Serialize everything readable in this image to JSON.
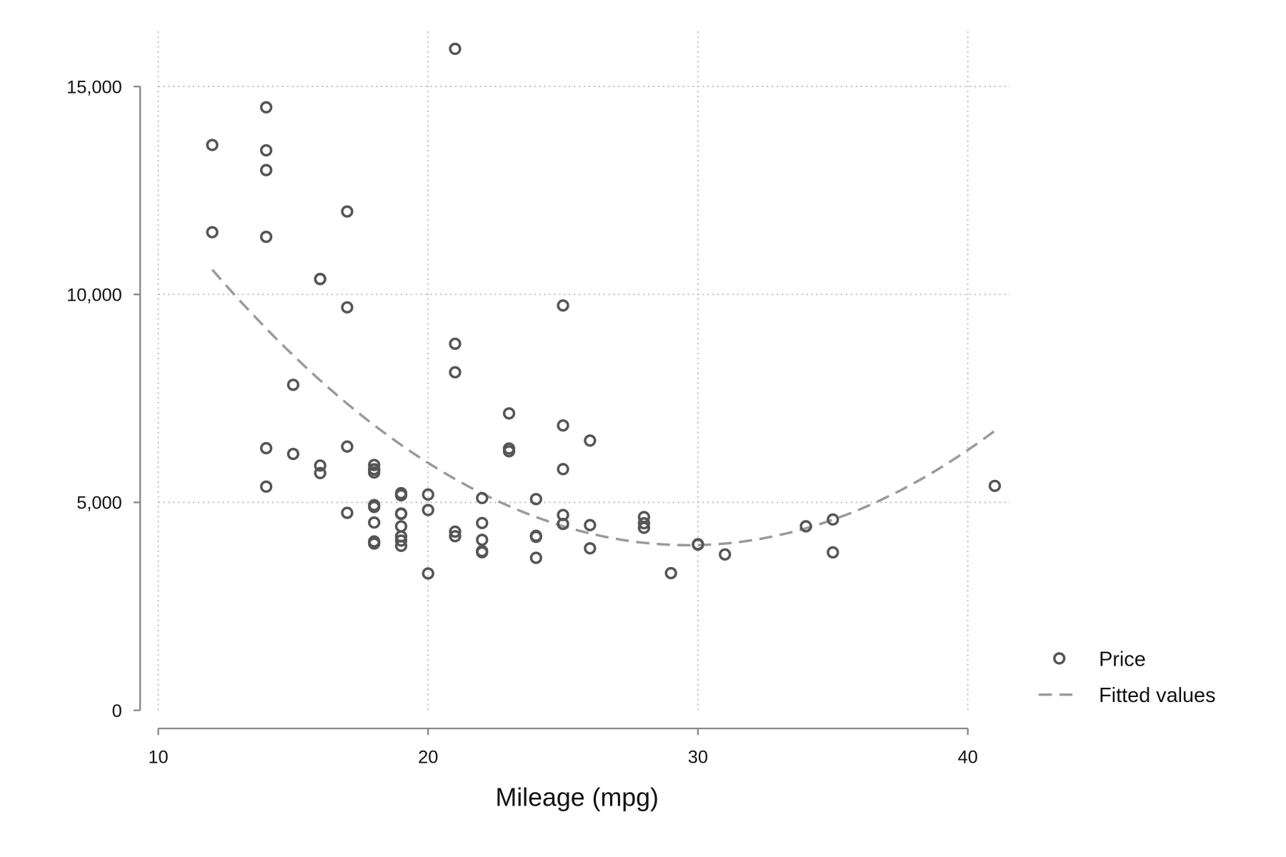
{
  "chart_data": {
    "type": "scatter",
    "title": "",
    "xlabel": "Mileage (mpg)",
    "ylabel": "",
    "xlim": [
      10,
      41
    ],
    "ylim": [
      0,
      16000
    ],
    "xticks": [
      10,
      20,
      30,
      40
    ],
    "xtick_labels": [
      "10",
      "20",
      "30",
      "40"
    ],
    "yticks": [
      0,
      5000,
      10000,
      15000
    ],
    "ytick_labels": [
      "0",
      "5,000",
      "10,000",
      "15,000"
    ],
    "grid": true,
    "legend": {
      "placement": "right",
      "entries": [
        "Price",
        "Fitted values"
      ]
    },
    "colors": {
      "marker": "#555555",
      "fit": "#9a9a9a",
      "grid": "#bbbbbb",
      "axis": "#888888"
    },
    "series": [
      {
        "name": "Price",
        "kind": "scatter",
        "x": [
          22,
          17,
          22,
          20,
          15,
          18,
          26,
          20,
          16,
          19,
          14,
          14,
          21,
          29,
          16,
          22,
          22,
          24,
          19,
          30,
          18,
          16,
          17,
          28,
          21,
          12,
          12,
          14,
          22,
          14,
          15,
          18,
          14,
          20,
          21,
          19,
          19,
          18,
          19,
          24,
          16,
          28,
          34,
          25,
          26,
          18,
          18,
          18,
          19,
          19,
          19,
          24,
          17,
          23,
          25,
          23,
          35,
          24,
          21,
          21,
          25,
          28,
          30,
          14,
          26,
          35,
          18,
          31,
          18,
          23,
          41,
          25,
          25,
          17
        ],
        "y": [
          4099,
          4749,
          3799,
          4816,
          7827,
          5788,
          4453,
          5189,
          10372,
          4082,
          11385,
          14500,
          15906,
          3299,
          5705,
          4504,
          5104,
          3667,
          3955,
          3984,
          4010,
          5886,
          6342,
          4389,
          4187,
          11497,
          13594,
          13466,
          3829,
          5379,
          6165,
          4516,
          6303,
          3291,
          8814,
          5172,
          4733,
          4890,
          4181,
          4195,
          10371,
          4647,
          4425,
          4482,
          6486,
          4060,
          5798,
          4934,
          5222,
          4723,
          4424,
          4172,
          9690,
          6295,
          9735,
          6229,
          4589,
          5079,
          8129,
          4296,
          5799,
          4499,
          3995,
          12990,
          3895,
          3798,
          5899,
          3748,
          5719,
          7140,
          5397,
          4697,
          6850,
          11995
        ]
      },
      {
        "name": "Fitted values",
        "kind": "line",
        "fit": "quadratic",
        "x_range": [
          12,
          41
        ],
        "coefficients": {
          "intercept": 22682,
          "linear": -1262.6,
          "quadratic": 21.3
        }
      }
    ]
  }
}
